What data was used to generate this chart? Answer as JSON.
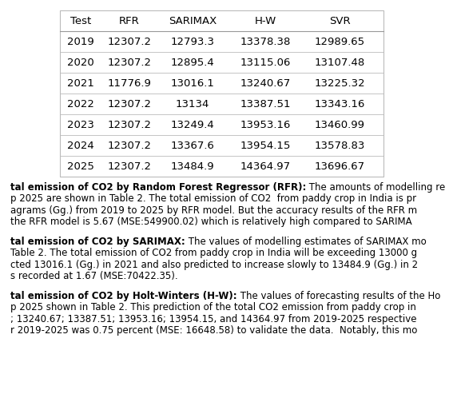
{
  "columns": [
    "Test",
    "RFR",
    "SARIMAX",
    "H-W",
    "SVR"
  ],
  "rows": [
    [
      "2019",
      "12307.2",
      "12793.3",
      "13378.38",
      "12989.65"
    ],
    [
      "2020",
      "12307.2",
      "12895.4",
      "13115.06",
      "13107.48"
    ],
    [
      "2021",
      "11776.9",
      "13016.1",
      "13240.67",
      "13225.32"
    ],
    [
      "2022",
      "12307.2",
      "13134",
      "13387.51",
      "13343.16"
    ],
    [
      "2023",
      "12307.2",
      "13249.4",
      "13953.16",
      "13460.99"
    ],
    [
      "2024",
      "12307.2",
      "13367.6",
      "13954.15",
      "13578.83"
    ],
    [
      "2025",
      "12307.2",
      "13484.9",
      "14364.97",
      "13696.67"
    ]
  ],
  "para1_bold": "tal emission of CO2 by Random Forest Regressor (RFR):",
  "para1_lines": [
    " The amounts of modelling re",
    "p 2025 are shown in Table 2. The total emission of CO2  from paddy crop in India is pr",
    "agrams (Gg.) from 2019 to 2025 by RFR model. But the accuracy results of the RFR m",
    "the RFR model is 5.67 (MSE:549900.02) which is relatively high compared to SARIMA"
  ],
  "para2_bold": "tal emission of CO2 by SARIMAX:",
  "para2_lines": [
    " The values of modelling estimates of SARIMAX mo",
    "Table 2. The total emission of CO2 from paddy crop in India will be exceeding 13000 g",
    "cted 13016.1 (Gg.) in 2021 and also predicted to increase slowly to 13484.9 (Gg.) in 2",
    "s recorded at 1.67 (MSE:70422.35)."
  ],
  "para3_bold": "tal emission of CO2 by Holt-Winters (H-W):",
  "para3_lines": [
    " The values of forecasting results of the Ho",
    "p 2025 shown in Table 2. This prediction of the total CO2 emission from paddy crop in",
    "; 13240.67; 13387.51; 13953.16; 13954.15, and 14364.97 from 2019-2025 respective",
    "r 2019-2025 was 0.75 percent (MSE: 16648.58) to validate the data.  Notably, this mo"
  ],
  "bg_color": "#ffffff",
  "text_color": "#000000",
  "table_font_size": 9.5,
  "para_font_size": 8.5
}
